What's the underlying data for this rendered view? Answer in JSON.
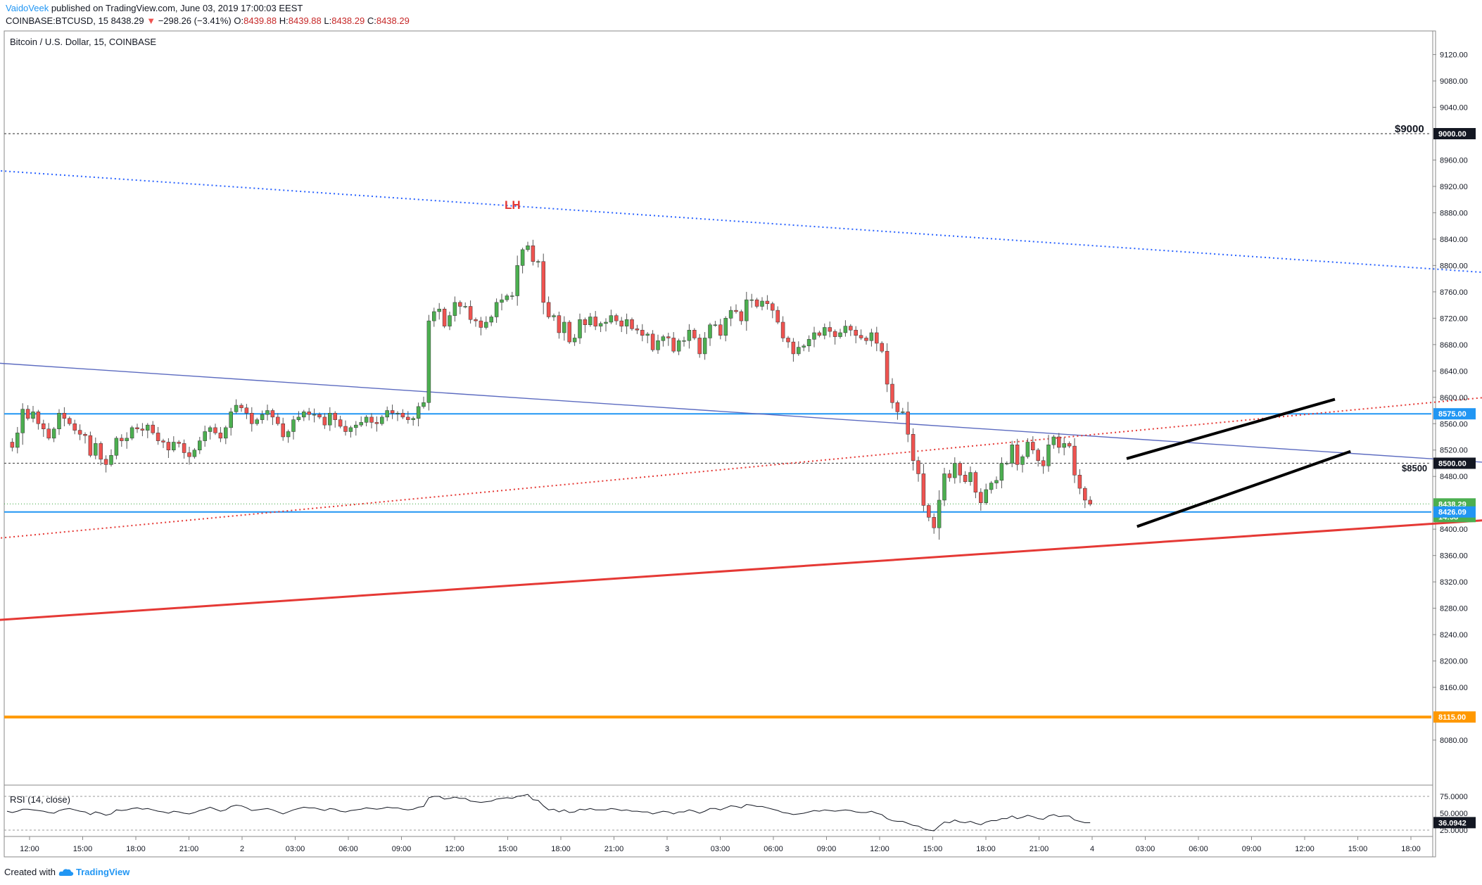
{
  "header": {
    "author": "VaidoVeek",
    "published_text": "published on TradingView.com, June 03, 2019 17:00:03 EEST",
    "symbol": "COINBASE:BTCUSD, 15",
    "last": "8438.29",
    "change": "−298.26 (−3.41%)",
    "o_label": "O:",
    "o_value": "8439.88",
    "h_label": "H:",
    "h_value": "8439.88",
    "l_label": "L:",
    "l_value": "8438.29",
    "c_label": "C:",
    "c_value": "8438.29"
  },
  "chart_title": "Bitcoin / U.S. Dollar, 15, COINBASE",
  "annotations": {
    "lh": "LH",
    "level_9000": "$9000",
    "level_8500": "$8500"
  },
  "rsi": {
    "label": "RSI (14, close)",
    "value": "36.0942",
    "ticks": [
      "75.0000",
      "50.0000",
      "25.0000"
    ]
  },
  "footer": {
    "created_with": "Created with",
    "brand": "TradingView"
  },
  "colors": {
    "up": "#4caf50",
    "down": "#ef5350",
    "wick": "#555555",
    "blue_level": "#2196f3",
    "orange_level": "#ff9800",
    "trend_red": "#e53935",
    "trend_blue": "#2962ff",
    "rsi_line": "#131722"
  },
  "chart_data": {
    "type": "candlestick",
    "symbol": "BTCUSD",
    "exchange": "COINBASE",
    "interval": "15",
    "ylim": [
      8040,
      9160
    ],
    "y_ticks": [
      "9120.00",
      "9080.00",
      "9040.00",
      "8960.00",
      "8920.00",
      "8880.00",
      "8840.00",
      "8800.00",
      "8760.00",
      "8720.00",
      "8680.00",
      "8640.00",
      "8600.00",
      "8560.00",
      "8520.00",
      "8480.00",
      "8400.00",
      "8360.00",
      "8320.00",
      "8280.00",
      "8240.00",
      "8200.00",
      "8160.00",
      "8080.00"
    ],
    "x_ticks": [
      "12:00",
      "15:00",
      "18:00",
      "21:00",
      "2",
      "03:00",
      "06:00",
      "09:00",
      "12:00",
      "15:00",
      "18:00",
      "21:00",
      "3",
      "03:00",
      "06:00",
      "09:00",
      "12:00",
      "15:00",
      "18:00",
      "21:00",
      "4",
      "03:00",
      "06:00",
      "09:00",
      "12:00",
      "15:00",
      "18:00"
    ],
    "price_labels": [
      {
        "value": 9000.0,
        "text": "9000.00",
        "style": "dark"
      },
      {
        "value": 8575.0,
        "text": "8575.00",
        "style": "blue"
      },
      {
        "value": 8500.0,
        "text": "8500.00",
        "style": "dark"
      },
      {
        "value": 8438.29,
        "text": "8438.29",
        "style": "green"
      },
      {
        "text": "14:58",
        "style": "green"
      },
      {
        "value": 8426.09,
        "text": "8426.09",
        "style": "blue"
      },
      {
        "value": 8115.0,
        "text": "8115.00",
        "style": "orange"
      }
    ],
    "horizontal_levels": [
      {
        "value": 9000,
        "style": "dashed-dark"
      },
      {
        "value": 8575,
        "style": "solid-blue"
      },
      {
        "value": 8500,
        "style": "dashed-dark"
      },
      {
        "value": 8426.09,
        "style": "solid-blue"
      },
      {
        "value": 8438.29,
        "style": "dotted-green"
      },
      {
        "value": 8115,
        "style": "solid-orange"
      }
    ],
    "candles_close": [
      8532,
      8524,
      8546,
      8582,
      8568,
      8578,
      8560,
      8552,
      8538,
      8552,
      8576,
      8568,
      8560,
      8550,
      8544,
      8542,
      8512,
      8530,
      8506,
      8498,
      8512,
      8538,
      8534,
      8538,
      8554,
      8552,
      8550,
      8558,
      8546,
      8534,
      8532,
      8520,
      8532,
      8530,
      8516,
      8510,
      8520,
      8534,
      8548,
      8554,
      8546,
      8538,
      8554,
      8578,
      8588,
      8584,
      8576,
      8560,
      8566,
      8574,
      8580,
      8570,
      8560,
      8540,
      8548,
      8566,
      8570,
      8578,
      8574,
      8574,
      8570,
      8558,
      8576,
      8566,
      8556,
      8548,
      8554,
      8558,
      8562,
      8570,
      8562,
      8560,
      8570,
      8580,
      8576,
      8576,
      8570,
      8566,
      8568,
      8586,
      8592,
      8716,
      8730,
      8734,
      8708,
      8724,
      8744,
      8738,
      8738,
      8718,
      8716,
      8706,
      8714,
      8722,
      8744,
      8748,
      8754,
      8754,
      8800,
      8824,
      8830,
      8806,
      8806,
      8744,
      8722,
      8724,
      8698,
      8714,
      8684,
      8690,
      8718,
      8710,
      8722,
      8708,
      8712,
      8714,
      8724,
      8716,
      8708,
      8718,
      8704,
      8702,
      8694,
      8696,
      8672,
      8686,
      8692,
      8690,
      8670,
      8686,
      8686,
      8702,
      8690,
      8666,
      8690,
      8710,
      8710,
      8694,
      8720,
      8732,
      8730,
      8716,
      8748,
      8748,
      8738,
      8746,
      8742,
      8732,
      8714,
      8690,
      8684,
      8666,
      8676,
      8678,
      8688,
      8698,
      8694,
      8706,
      8700,
      8692,
      8698,
      8708,
      8702,
      8694,
      8690,
      8686,
      8698,
      8682,
      8670,
      8620,
      8592,
      8578,
      8578,
      8544,
      8504,
      8484,
      8436,
      8418,
      8402,
      8444,
      8484,
      8478,
      8500,
      8482,
      8472,
      8486,
      8456,
      8440,
      8460,
      8470,
      8474,
      8500,
      8500,
      8528,
      8498,
      8510,
      8532,
      8520,
      8504,
      8496,
      8528,
      8540,
      8524,
      8530,
      8526,
      8482,
      8462,
      8444,
      8438
    ],
    "rsi_values": [
      53,
      51,
      53,
      56,
      56,
      55,
      54,
      53,
      51,
      50,
      54,
      56,
      57,
      55,
      53,
      52,
      48,
      52,
      50,
      47,
      49,
      55,
      54,
      55,
      57,
      58,
      56,
      57,
      55,
      53,
      52,
      50,
      53,
      52,
      50,
      49,
      51,
      54,
      56,
      59,
      56,
      53,
      55,
      60,
      62,
      61,
      58,
      54,
      55,
      56,
      57,
      55,
      52,
      49,
      52,
      55,
      57,
      59,
      58,
      58,
      56,
      54,
      57,
      56,
      53,
      52,
      54,
      55,
      56,
      58,
      57,
      56,
      57,
      59,
      58,
      58,
      56,
      55,
      56,
      59,
      60,
      73,
      75,
      75,
      71,
      72,
      74,
      72,
      72,
      68,
      67,
      66,
      67,
      68,
      71,
      72,
      73,
      72,
      75,
      76,
      78,
      70,
      69,
      61,
      55,
      56,
      52,
      55,
      51,
      52,
      56,
      55,
      57,
      55,
      55,
      55,
      57,
      56,
      54,
      55,
      53,
      53,
      52,
      52,
      49,
      51,
      53,
      52,
      49,
      52,
      52,
      55,
      53,
      50,
      53,
      57,
      57,
      55,
      58,
      61,
      60,
      58,
      63,
      62,
      60,
      60,
      58,
      56,
      54,
      51,
      50,
      48,
      49,
      50,
      52,
      54,
      53,
      55,
      54,
      53,
      54,
      55,
      54,
      52,
      51,
      51,
      53,
      50,
      48,
      42,
      39,
      38,
      38,
      35,
      32,
      31,
      27,
      25,
      24,
      31,
      37,
      36,
      40,
      37,
      36,
      38,
      35,
      33,
      37,
      39,
      39,
      42,
      42,
      46,
      42,
      44,
      47,
      45,
      42,
      41,
      46,
      48,
      45,
      46,
      46,
      40,
      38,
      36,
      36
    ],
    "trendlines": [
      {
        "name": "upper-blue-dotted",
        "from": {
          "bar": -2,
          "price": 8944
        },
        "to": {
          "bar": 560,
          "price": 8640
        }
      },
      {
        "name": "blue-thin",
        "from": {
          "bar": -2,
          "price": 8652
        },
        "to": {
          "bar": 294,
          "price": 8496
        }
      },
      {
        "name": "red-dotted",
        "from": {
          "bar": -2,
          "price": 8386
        },
        "to": {
          "bar": 391,
          "price": 8680
        }
      },
      {
        "name": "red-solid",
        "from": {
          "bar": -2,
          "price": 8262
        },
        "to": {
          "bar": 560,
          "price": 8560
        }
      },
      {
        "name": "channel-upper",
        "from": {
          "bar": 215,
          "price": 8507
        },
        "to": {
          "bar": 255,
          "price": 8597
        }
      },
      {
        "name": "channel-lower",
        "from": {
          "bar": 217,
          "price": 8404
        },
        "to": {
          "bar": 258,
          "price": 8518
        }
      }
    ]
  }
}
